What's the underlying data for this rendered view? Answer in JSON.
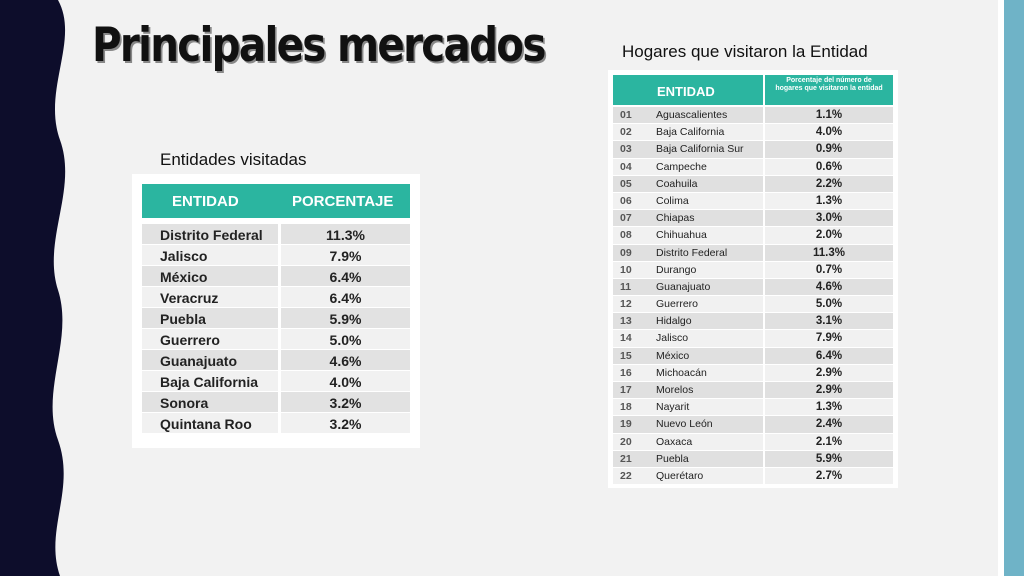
{
  "title": "Principales mercados",
  "left": {
    "caption": "Entidades visitadas",
    "header": [
      "ENTIDAD",
      "PORCENTAJE"
    ],
    "rows": [
      [
        "Distrito Federal",
        "11.3%"
      ],
      [
        "Jalisco",
        "7.9%"
      ],
      [
        "México",
        "6.4%"
      ],
      [
        "Veracruz",
        "6.4%"
      ],
      [
        "Puebla",
        "5.9%"
      ],
      [
        "Guerrero",
        "5.0%"
      ],
      [
        "Guanajuato",
        "4.6%"
      ],
      [
        "Baja California",
        "4.0%"
      ],
      [
        "Sonora",
        "3.2%"
      ],
      [
        "Quintana Roo",
        "3.2%"
      ]
    ]
  },
  "right": {
    "caption": "Hogares que visitaron la Entidad",
    "header": [
      "ENTIDAD",
      "Porcentaje del número de hogares que visitaron la entidad"
    ],
    "rows": [
      [
        "01",
        "Aguascalientes",
        "1.1%"
      ],
      [
        "02",
        "Baja California",
        "4.0%"
      ],
      [
        "03",
        "Baja California Sur",
        "0.9%"
      ],
      [
        "04",
        "Campeche",
        "0.6%"
      ],
      [
        "05",
        "Coahuila",
        "2.2%"
      ],
      [
        "06",
        "Colima",
        "1.3%"
      ],
      [
        "07",
        "Chiapas",
        "3.0%"
      ],
      [
        "08",
        "Chihuahua",
        "2.0%"
      ],
      [
        "09",
        "Distrito Federal",
        "11.3%"
      ],
      [
        "10",
        "Durango",
        "0.7%"
      ],
      [
        "11",
        "Guanajuato",
        "4.6%"
      ],
      [
        "12",
        "Guerrero",
        "5.0%"
      ],
      [
        "13",
        "Hidalgo",
        "3.1%"
      ],
      [
        "14",
        "Jalisco",
        "7.9%"
      ],
      [
        "15",
        "México",
        "6.4%"
      ],
      [
        "16",
        "Michoacán",
        "2.9%"
      ],
      [
        "17",
        "Morelos",
        "2.9%"
      ],
      [
        "18",
        "Nayarit",
        "1.3%"
      ],
      [
        "19",
        "Nuevo León",
        "2.4%"
      ],
      [
        "20",
        "Oaxaca",
        "2.1%"
      ],
      [
        "21",
        "Puebla",
        "5.9%"
      ],
      [
        "22",
        "Querétaro",
        "2.7%"
      ]
    ]
  },
  "colors": {
    "accent": "#2bb5a0",
    "left_band": "#0d0d2b",
    "right_stripe": "#6fb3c7"
  }
}
